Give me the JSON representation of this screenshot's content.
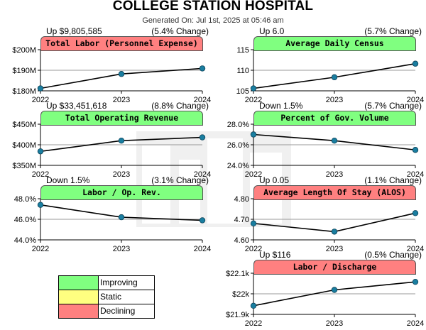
{
  "header": {
    "title": "COLLEGE STATION HOSPITAL",
    "subtitle": "Generated On: Jul 1st, 2025 at 05:46 am"
  },
  "colors": {
    "improving": "#80ff80",
    "static": "#ffff80",
    "declining": "#ff8080",
    "line": "#000000",
    "marker": "#1a7ea0",
    "grid": "#999999"
  },
  "legend": [
    {
      "label": "Improving",
      "color": "#80ff80"
    },
    {
      "label": "Static",
      "color": "#ffff80"
    },
    {
      "label": "Declining",
      "color": "#ff8080"
    }
  ],
  "chart_data": [
    {
      "type": "line",
      "title": "Total Labor (Personnel Expense)",
      "status": "declining",
      "change_left": "Up $9,805,585",
      "change_right": "(5.4% Change)",
      "x": [
        "2022",
        "2023",
        "2024"
      ],
      "values": [
        181.2,
        188.2,
        190.9
      ],
      "ylim": [
        180,
        200
      ],
      "yticks": [
        180,
        190,
        200
      ],
      "yticklabels": [
        "$180M",
        "$190M",
        "$200M"
      ]
    },
    {
      "type": "line",
      "title": "Average Daily Census",
      "status": "improving",
      "change_left": "Up 6.0",
      "change_right": "(5.7% Change)",
      "x": [
        "2022",
        "2023",
        "2024"
      ],
      "values": [
        105.6,
        108.3,
        111.6
      ],
      "ylim": [
        105,
        115
      ],
      "yticks": [
        105,
        110,
        115
      ],
      "yticklabels": [
        "105",
        "110",
        "115"
      ]
    },
    {
      "type": "line",
      "title": "Total Operating Revenue",
      "status": "improving",
      "change_left": "Up $33,451,618",
      "change_right": "(8.8% Change)",
      "x": [
        "2022",
        "2023",
        "2024"
      ],
      "values": [
        384,
        410,
        418
      ],
      "ylim": [
        350,
        450
      ],
      "yticks": [
        350,
        400,
        450
      ],
      "yticklabels": [
        "$350M",
        "$400M",
        "$450M"
      ]
    },
    {
      "type": "line",
      "title": "Percent of Gov. Volume",
      "status": "improving",
      "change_left": "Down 1.5%",
      "change_right": "(5.7% Change)",
      "x": [
        "2022",
        "2023",
        "2024"
      ],
      "values": [
        27.0,
        26.4,
        25.5
      ],
      "ylim": [
        24,
        28
      ],
      "yticks": [
        24,
        26,
        28
      ],
      "yticklabels": [
        "24.0%",
        "26.0%",
        "28.0%"
      ]
    },
    {
      "type": "line",
      "title": "Labor / Op. Rev.",
      "status": "improving",
      "change_left": "Down 1.5%",
      "change_right": "(3.1% Change)",
      "x": [
        "2022",
        "2023",
        "2024"
      ],
      "values": [
        47.4,
        46.2,
        45.9
      ],
      "ylim": [
        44,
        48
      ],
      "yticks": [
        44,
        46,
        48
      ],
      "yticklabels": [
        "44.0%",
        "46.0%",
        "48.0%"
      ]
    },
    {
      "type": "line",
      "title": "Average Length Of Stay (ALOS)",
      "status": "declining",
      "change_left": "Up 0.05",
      "change_right": "(1.1% Change)",
      "x": [
        "2022",
        "2023",
        "2024"
      ],
      "values": [
        4.68,
        4.64,
        4.73
      ],
      "ylim": [
        4.6,
        4.8
      ],
      "yticks": [
        4.6,
        4.7,
        4.8
      ],
      "yticklabels": [
        "4.60",
        "4.70",
        "4.80"
      ]
    },
    {
      "type": "line",
      "title": "Labor / Discharge",
      "status": "declining",
      "change_left": "Up $116",
      "change_right": "(0.5% Change)",
      "x": [
        "2022",
        "2023",
        "2024"
      ],
      "values": [
        21942,
        22019,
        22058
      ],
      "ylim": [
        21900,
        22100
      ],
      "yticks": [
        21900,
        22000,
        22100
      ],
      "yticklabels": [
        "$21.9k",
        "$22k",
        "$22.1k"
      ]
    }
  ]
}
